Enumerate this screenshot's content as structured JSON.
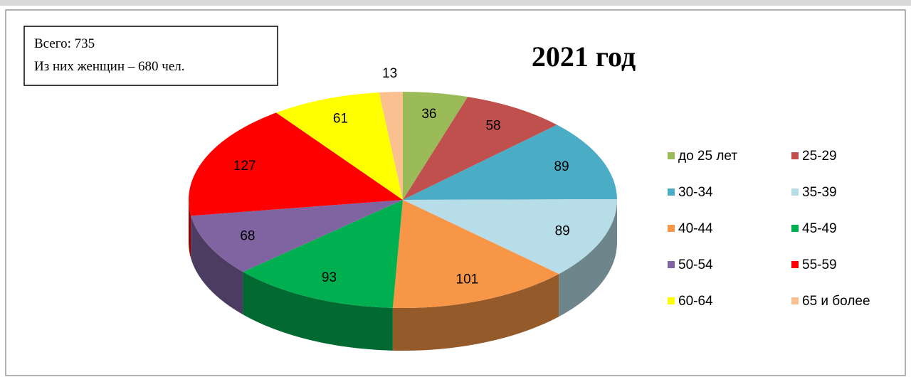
{
  "chart_data": {
    "type": "pie",
    "title": "2021 год",
    "annotations": [
      "Всего: 735",
      "Из них женщин – 680 чел."
    ],
    "categories": [
      "до 25 лет",
      "25-29",
      "30-34",
      "35-39",
      "40-44",
      "45-49",
      "50-54",
      "55-59",
      "60-64",
      "65 и более"
    ],
    "values": [
      36,
      58,
      89,
      89,
      101,
      93,
      68,
      127,
      61,
      13
    ],
    "colors": [
      "#9bbb59",
      "#c0504d",
      "#4bacc6",
      "#b7dde8",
      "#f79646",
      "#00b050",
      "#8064a2",
      "#ff0000",
      "#ffff00",
      "#fac090"
    ],
    "legend": "right"
  }
}
